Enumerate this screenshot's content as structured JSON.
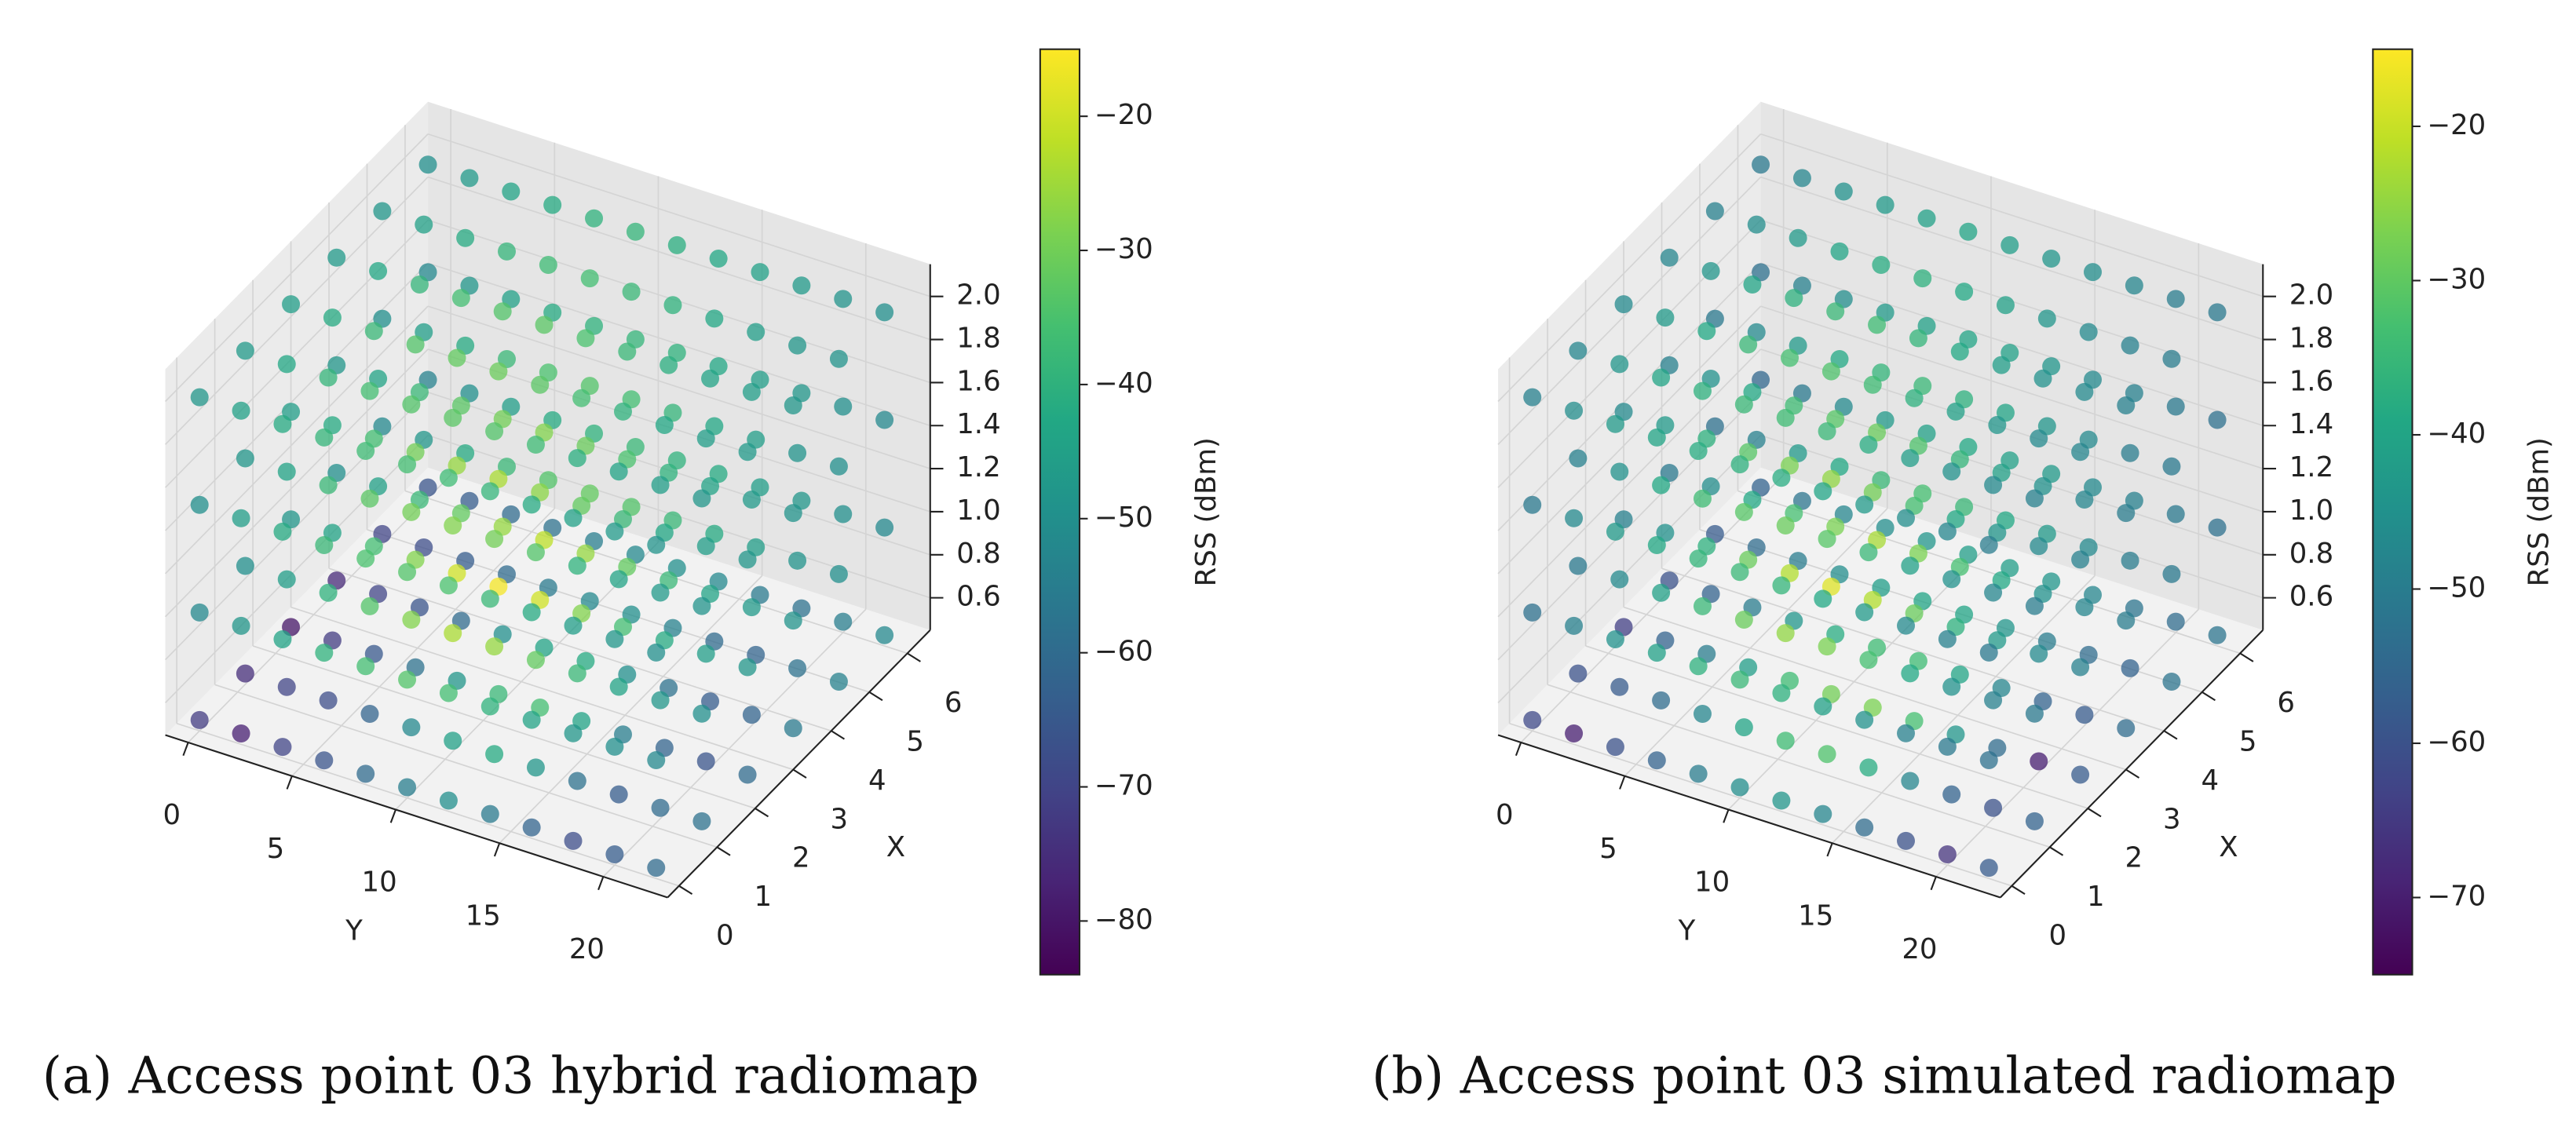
{
  "chart_data": [
    {
      "type": "scatter3d",
      "caption": "(a) Access point 03 hybrid radiomap",
      "xlabel": "X",
      "ylabel": "Y",
      "colorbar_label": "RSS (dBm)",
      "colormap": "viridis",
      "x": [
        0,
        1.2,
        2.4,
        3.6,
        4.8,
        6
      ],
      "y": [
        0,
        2,
        4,
        6,
        8,
        10,
        12,
        14,
        16,
        18,
        20,
        22
      ],
      "z": [
        0.5,
        1.0,
        1.5,
        2.0
      ],
      "xlim": [
        -0.3,
        6.6
      ],
      "ylim": [
        -1.1,
        23.1
      ],
      "zlim": [
        0.45,
        2.15
      ],
      "clim": [
        -84,
        -15
      ],
      "xticks": [
        0,
        1,
        2,
        3,
        4,
        5,
        6
      ],
      "yticks": [
        0,
        5,
        10,
        15,
        20
      ],
      "zticks": [
        0.6,
        0.8,
        {
          "value": 1.0,
          "label": "1.0"
        },
        1.2,
        1.4,
        1.6,
        1.8,
        {
          "value": 2.0,
          "label": "2.0"
        }
      ],
      "cticks": [
        {
          "value": -20,
          "label": "−20"
        },
        {
          "value": -30,
          "label": "−30"
        },
        {
          "value": -40,
          "label": "−40"
        },
        {
          "value": -50,
          "label": "−50"
        },
        {
          "value": -60,
          "label": "−60"
        },
        {
          "value": -70,
          "label": "−70"
        },
        {
          "value": -80,
          "label": "−80"
        }
      ],
      "values": [
        [
          [
            -72,
            -78,
            -70,
            -66,
            -60,
            -55,
            -50,
            -56,
            -62,
            -68,
            -64,
            -60
          ],
          [
            -75,
            -70,
            -68,
            -62,
            -52,
            -45,
            -42,
            -48,
            -58,
            -64,
            -60,
            -58
          ],
          [
            -80,
            -72,
            -65,
            -58,
            -48,
            -38,
            -36,
            -44,
            -55,
            -62,
            -66,
            -60
          ],
          [
            -76,
            -70,
            -66,
            -60,
            -50,
            -44,
            -42,
            -50,
            -58,
            -64,
            -62,
            -56
          ],
          [
            -70,
            -68,
            -64,
            -60,
            -56,
            -52,
            -50,
            -54,
            -60,
            -62,
            -58,
            -54
          ],
          [
            -66,
            -64,
            -60,
            -58,
            -55,
            -52,
            -50,
            -52,
            -56,
            -58,
            -55,
            -52
          ]
        ],
        [
          [
            -52,
            -48,
            -44,
            -40,
            -36,
            -34,
            -36,
            -40,
            -44,
            -48,
            -50,
            -52
          ],
          [
            -50,
            -46,
            -40,
            -34,
            -28,
            -24,
            -26,
            -32,
            -38,
            -44,
            -48,
            -50
          ],
          [
            -48,
            -44,
            -36,
            -28,
            -20,
            -16,
            -20,
            -28,
            -36,
            -42,
            -46,
            -48
          ],
          [
            -50,
            -45,
            -38,
            -32,
            -26,
            -22,
            -26,
            -32,
            -38,
            -44,
            -47,
            -49
          ],
          [
            -52,
            -48,
            -42,
            -38,
            -34,
            -32,
            -34,
            -38,
            -42,
            -46,
            -49,
            -50
          ],
          [
            -54,
            -50,
            -46,
            -42,
            -40,
            -38,
            -40,
            -42,
            -46,
            -48,
            -50,
            -52
          ]
        ],
        [
          [
            -50,
            -46,
            -42,
            -38,
            -35,
            -34,
            -35,
            -38,
            -42,
            -46,
            -48,
            -50
          ],
          [
            -48,
            -44,
            -38,
            -33,
            -30,
            -28,
            -30,
            -34,
            -40,
            -44,
            -47,
            -49
          ],
          [
            -46,
            -42,
            -36,
            -30,
            -26,
            -24,
            -27,
            -32,
            -38,
            -43,
            -46,
            -48
          ],
          [
            -48,
            -44,
            -38,
            -33,
            -30,
            -28,
            -31,
            -35,
            -40,
            -44,
            -47,
            -49
          ],
          [
            -50,
            -46,
            -42,
            -38,
            -35,
            -34,
            -36,
            -39,
            -43,
            -46,
            -49,
            -50
          ],
          [
            -52,
            -48,
            -45,
            -42,
            -40,
            -39,
            -40,
            -43,
            -46,
            -48,
            -50,
            -52
          ]
        ],
        [
          [
            -48,
            -45,
            -42,
            -39,
            -37,
            -36,
            -37,
            -39,
            -42,
            -45,
            -47,
            -49
          ],
          [
            -47,
            -43,
            -39,
            -36,
            -34,
            -33,
            -34,
            -37,
            -41,
            -44,
            -46,
            -48
          ],
          [
            -46,
            -42,
            -38,
            -34,
            -32,
            -31,
            -33,
            -36,
            -40,
            -43,
            -46,
            -47
          ],
          [
            -47,
            -43,
            -39,
            -36,
            -34,
            -33,
            -35,
            -38,
            -41,
            -44,
            -46,
            -48
          ],
          [
            -48,
            -45,
            -42,
            -39,
            -37,
            -36,
            -38,
            -40,
            -43,
            -46,
            -48,
            -49
          ],
          [
            -50,
            -47,
            -44,
            -42,
            -40,
            -39,
            -41,
            -43,
            -45,
            -47,
            -49,
            -50
          ]
        ]
      ]
    },
    {
      "type": "scatter3d",
      "caption": "(b) Access point 03 simulated radiomap",
      "xlabel": "X",
      "ylabel": "Y",
      "colorbar_label": "RSS (dBm)",
      "colormap": "viridis",
      "x": [
        0,
        1.2,
        2.4,
        3.6,
        4.8,
        6
      ],
      "y": [
        0,
        2,
        4,
        6,
        8,
        10,
        12,
        14,
        16,
        18,
        20,
        22
      ],
      "z": [
        0.5,
        1.0,
        1.5,
        2.0
      ],
      "xlim": [
        -0.3,
        6.6
      ],
      "ylim": [
        -1.1,
        23.1
      ],
      "zlim": [
        0.45,
        2.15
      ],
      "clim": [
        -75,
        -15
      ],
      "xticks": [
        0,
        1,
        2,
        3,
        4,
        5,
        6
      ],
      "yticks": [
        0,
        5,
        10,
        15,
        20
      ],
      "zticks": [
        0.6,
        0.8,
        {
          "value": 1.0,
          "label": "1.0"
        },
        1.2,
        1.4,
        1.6,
        1.8,
        {
          "value": 2.0,
          "label": "2.0"
        }
      ],
      "cticks": [
        {
          "value": -20,
          "label": "−20"
        },
        {
          "value": -30,
          "label": "−30"
        },
        {
          "value": -40,
          "label": "−40"
        },
        {
          "value": -50,
          "label": "−50"
        },
        {
          "value": -60,
          "label": "−60"
        },
        {
          "value": -70,
          "label": "−70"
        }
      ],
      "values": [
        [
          [
            -62,
            -70,
            -60,
            -56,
            -50,
            -46,
            -44,
            -48,
            -54,
            -60,
            -66,
            -58
          ],
          [
            -60,
            -58,
            -54,
            -48,
            -40,
            -34,
            -32,
            -38,
            -48,
            -56,
            -60,
            -56
          ],
          [
            -64,
            -56,
            -50,
            -42,
            -34,
            -28,
            -27,
            -33,
            -44,
            -54,
            -70,
            -58
          ],
          [
            -60,
            -56,
            -50,
            -44,
            -38,
            -34,
            -34,
            -40,
            -48,
            -56,
            -58,
            -54
          ],
          [
            -58,
            -54,
            -50,
            -46,
            -42,
            -40,
            -40,
            -44,
            -50,
            -54,
            -56,
            -52
          ],
          [
            -56,
            -52,
            -48,
            -46,
            -44,
            -42,
            -42,
            -44,
            -48,
            -52,
            -54,
            -52
          ]
        ],
        [
          [
            -53,
            -49,
            -45,
            -41,
            -37,
            -35,
            -37,
            -41,
            -45,
            -49,
            -51,
            -53
          ],
          [
            -51,
            -47,
            -41,
            -35,
            -29,
            -25,
            -27,
            -33,
            -39,
            -45,
            -49,
            -51
          ],
          [
            -49,
            -45,
            -37,
            -29,
            -22,
            -18,
            -22,
            -29,
            -37,
            -43,
            -47,
            -49
          ],
          [
            -51,
            -46,
            -39,
            -33,
            -27,
            -23,
            -27,
            -33,
            -39,
            -45,
            -48,
            -50
          ],
          [
            -53,
            -49,
            -43,
            -39,
            -35,
            -33,
            -35,
            -39,
            -43,
            -47,
            -50,
            -51
          ],
          [
            -55,
            -51,
            -47,
            -43,
            -41,
            -39,
            -41,
            -43,
            -47,
            -49,
            -51,
            -53
          ]
        ],
        [
          [
            -51,
            -47,
            -43,
            -39,
            -36,
            -35,
            -36,
            -39,
            -43,
            -47,
            -49,
            -51
          ],
          [
            -49,
            -45,
            -39,
            -34,
            -31,
            -29,
            -31,
            -35,
            -41,
            -45,
            -48,
            -50
          ],
          [
            -47,
            -43,
            -37,
            -31,
            -27,
            -25,
            -28,
            -33,
            -39,
            -44,
            -47,
            -49
          ],
          [
            -49,
            -45,
            -39,
            -34,
            -31,
            -29,
            -32,
            -36,
            -41,
            -45,
            -48,
            -50
          ],
          [
            -51,
            -47,
            -43,
            -39,
            -36,
            -35,
            -37,
            -40,
            -44,
            -47,
            -50,
            -51
          ],
          [
            -53,
            -49,
            -46,
            -43,
            -41,
            -40,
            -41,
            -44,
            -47,
            -49,
            -51,
            -53
          ]
        ],
        [
          [
            -49,
            -46,
            -43,
            -40,
            -38,
            -37,
            -38,
            -40,
            -43,
            -46,
            -48,
            -50
          ],
          [
            -48,
            -44,
            -40,
            -37,
            -35,
            -34,
            -35,
            -38,
            -42,
            -45,
            -47,
            -49
          ],
          [
            -47,
            -43,
            -39,
            -35,
            -33,
            -32,
            -34,
            -37,
            -41,
            -44,
            -47,
            -48
          ],
          [
            -48,
            -44,
            -40,
            -37,
            -35,
            -34,
            -36,
            -39,
            -42,
            -45,
            -47,
            -49
          ],
          [
            -49,
            -46,
            -43,
            -40,
            -38,
            -37,
            -39,
            -41,
            -44,
            -47,
            -49,
            -50
          ],
          [
            -51,
            -48,
            -45,
            -43,
            -41,
            -40,
            -42,
            -44,
            -46,
            -48,
            -50,
            -51
          ]
        ]
      ]
    }
  ]
}
